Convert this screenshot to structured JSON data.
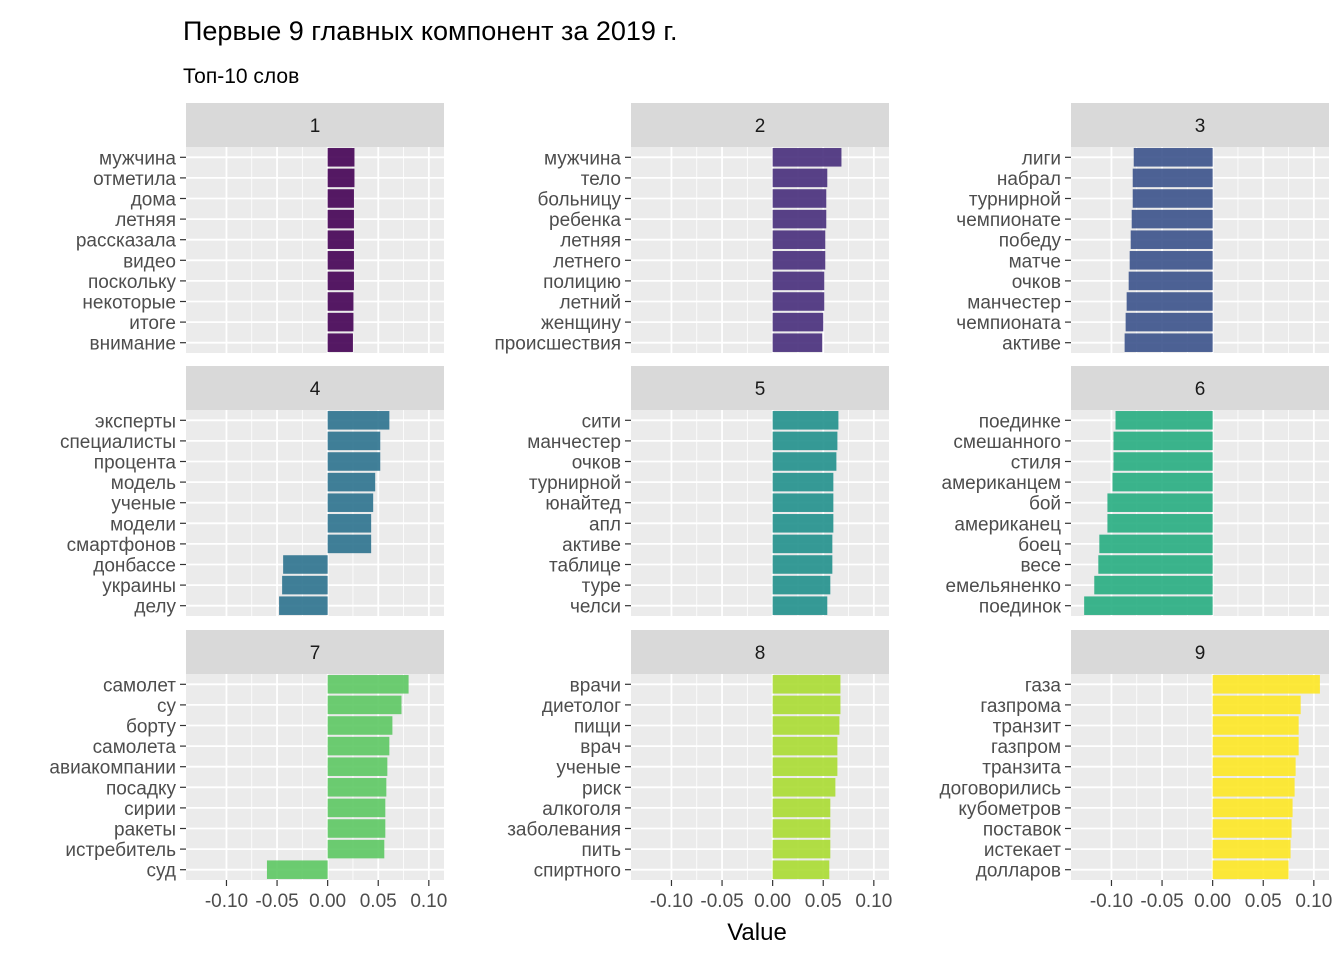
{
  "chart_data": {
    "type": "bar",
    "orientation": "horizontal",
    "title": "Первые 9 главных компонент за 2019 г.",
    "subtitle": "Топ-10 слов",
    "xlabel": "Value",
    "ylabel": "",
    "xlim": [
      -0.14,
      0.115
    ],
    "x_ticks": [
      -0.1,
      -0.05,
      0.0,
      0.05,
      0.1
    ],
    "x_tick_labels": [
      "-0.10",
      "-0.05",
      "0.00",
      "0.05",
      "0.10"
    ],
    "grid": true,
    "legend": "none",
    "panel_background": "#ebebeb",
    "strip_background": "#d9d9d9",
    "facets": [
      {
        "label": "1",
        "color": "#440154",
        "categories": [
          "мужчина",
          "отметила",
          "дома",
          "летняя",
          "рассказала",
          "видео",
          "поскольку",
          "некоторые",
          "итоге",
          "внимание"
        ],
        "values": [
          0.0265,
          0.0265,
          0.026,
          0.026,
          0.026,
          0.026,
          0.026,
          0.0255,
          0.0255,
          0.025
        ]
      },
      {
        "label": "2",
        "color": "#472D7B",
        "categories": [
          "мужчина",
          "тело",
          "больницу",
          "ребенка",
          "летняя",
          "летнего",
          "полицию",
          "летний",
          "женщину",
          "происшествия"
        ],
        "values": [
          0.068,
          0.054,
          0.053,
          0.053,
          0.052,
          0.052,
          0.051,
          0.051,
          0.05,
          0.049
        ]
      },
      {
        "label": "3",
        "color": "#3B528B",
        "categories": [
          "лиги",
          "набрал",
          "турнирной",
          "чемпионате",
          "победу",
          "матче",
          "очков",
          "манчестер",
          "чемпионата",
          "активе"
        ],
        "values": [
          -0.078,
          -0.079,
          -0.079,
          -0.08,
          -0.081,
          -0.082,
          -0.083,
          -0.085,
          -0.086,
          -0.087
        ]
      },
      {
        "label": "4",
        "color": "#2C728E",
        "categories": [
          "эксперты",
          "специалисты",
          "процента",
          "модель",
          "ученые",
          "модели",
          "смартфонов",
          "донбассе",
          "украины",
          "делу"
        ],
        "values": [
          0.061,
          0.052,
          0.052,
          0.047,
          0.045,
          0.043,
          0.043,
          -0.044,
          -0.045,
          -0.048
        ]
      },
      {
        "label": "5",
        "color": "#21908C",
        "categories": [
          "сити",
          "манчестер",
          "очков",
          "турнирной",
          "юнайтед",
          "апл",
          "активе",
          "таблице",
          "туре",
          "челси"
        ],
        "values": [
          0.065,
          0.064,
          0.063,
          0.06,
          0.06,
          0.06,
          0.059,
          0.059,
          0.057,
          0.054
        ]
      },
      {
        "label": "6",
        "color": "#27AD81",
        "categories": [
          "поединке",
          "смешанного",
          "стиля",
          "американцем",
          "бой",
          "американец",
          "боец",
          "весе",
          "емельяненко",
          "поединок"
        ],
        "values": [
          -0.096,
          -0.098,
          -0.098,
          -0.099,
          -0.104,
          -0.104,
          -0.112,
          -0.113,
          -0.117,
          -0.127
        ]
      },
      {
        "label": "7",
        "color": "#5DC863",
        "categories": [
          "самолет",
          "су",
          "борту",
          "самолета",
          "авиакомпании",
          "посадку",
          "сирии",
          "ракеты",
          "истребитель",
          "суд"
        ],
        "values": [
          0.08,
          0.073,
          0.064,
          0.061,
          0.059,
          0.058,
          0.057,
          0.057,
          0.056,
          -0.06
        ]
      },
      {
        "label": "8",
        "color": "#AADC32",
        "categories": [
          "врачи",
          "диетолог",
          "пищи",
          "врач",
          "ученые",
          "риск",
          "алкоголя",
          "заболевания",
          "пить",
          "спиртного"
        ],
        "values": [
          0.067,
          0.067,
          0.066,
          0.064,
          0.064,
          0.062,
          0.057,
          0.057,
          0.057,
          0.056
        ]
      },
      {
        "label": "9",
        "color": "#FDE725",
        "categories": [
          "газа",
          "газпрома",
          "транзит",
          "газпром",
          "транзита",
          "договорились",
          "кубометров",
          "поставок",
          "истекает",
          "долларов"
        ],
        "values": [
          0.106,
          0.087,
          0.085,
          0.085,
          0.082,
          0.081,
          0.079,
          0.078,
          0.077,
          0.075
        ]
      }
    ]
  }
}
